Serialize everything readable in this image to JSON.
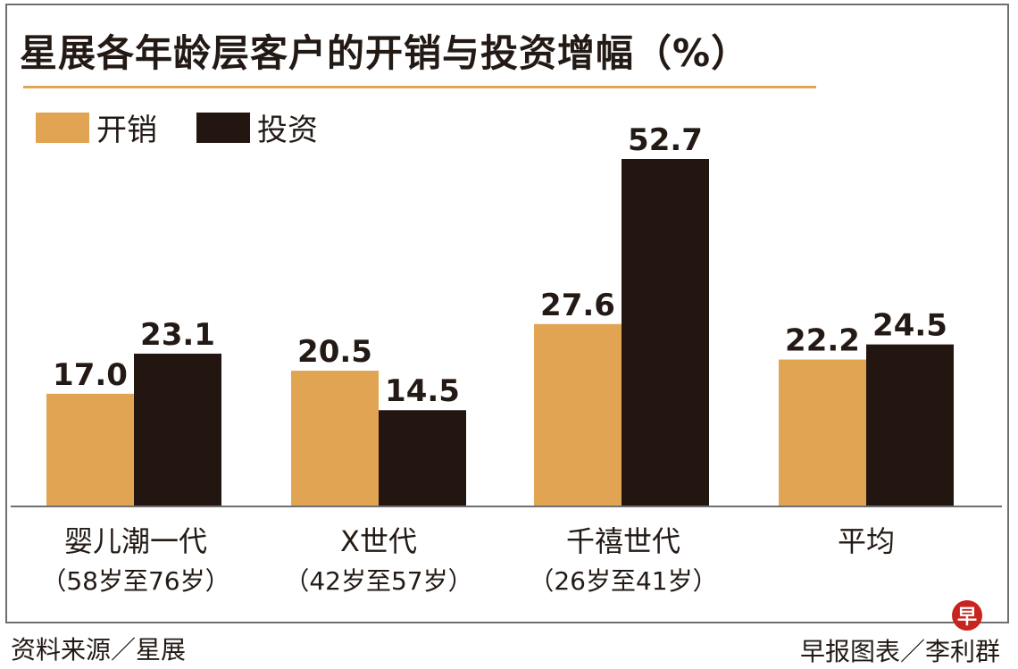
{
  "chart_data": {
    "type": "bar",
    "title": "星展各年龄层客户的开销与投资增幅（%）",
    "categories": [
      {
        "name": "婴儿潮一代",
        "sub": "（58岁至76岁）"
      },
      {
        "name": "X世代",
        "sub": "（42岁至57岁）"
      },
      {
        "name": "千禧世代",
        "sub": "（26岁至41岁）"
      },
      {
        "name": "平均",
        "sub": ""
      }
    ],
    "series": [
      {
        "name": "开销",
        "color": "#e1a453",
        "values": [
          17.0,
          20.5,
          27.6,
          22.2
        ],
        "labels": [
          "17.0",
          "20.5",
          "27.6",
          "22.2"
        ]
      },
      {
        "name": "投资",
        "color": "#231510",
        "values": [
          23.1,
          14.5,
          52.7,
          24.5
        ],
        "labels": [
          "23.1",
          "14.5",
          "52.7",
          "24.5"
        ]
      }
    ],
    "ylim": [
      0,
      55
    ],
    "grid": false,
    "legend": "top-left"
  },
  "footer": {
    "source": "资料来源／星展",
    "credit": "早报图表／李利群",
    "logo_char": "早"
  }
}
